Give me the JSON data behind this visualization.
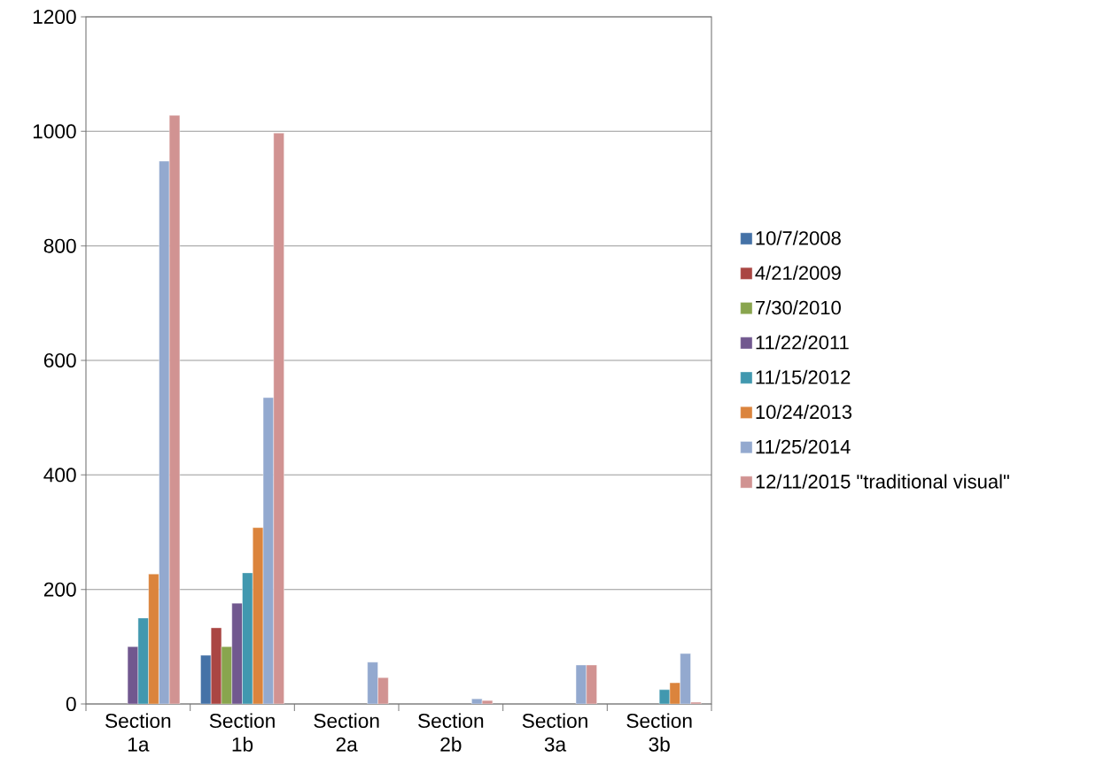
{
  "chart_data": {
    "type": "bar",
    "categories": [
      "Section 1a",
      "Section 1b",
      "Section 2a",
      "Section 2b",
      "Section 3a",
      "Section 3b"
    ],
    "series": [
      {
        "name": "10/7/2008",
        "color": "#4572a7",
        "values": [
          null,
          85,
          null,
          null,
          null,
          null
        ]
      },
      {
        "name": "4/21/2009",
        "color": "#aa4643",
        "values": [
          null,
          133,
          null,
          null,
          null,
          null
        ]
      },
      {
        "name": "7/30/2010",
        "color": "#89a54e",
        "values": [
          null,
          100,
          null,
          null,
          null,
          null
        ]
      },
      {
        "name": "11/22/2011",
        "color": "#71588f",
        "values": [
          100,
          176,
          null,
          null,
          null,
          null
        ]
      },
      {
        "name": "11/15/2012",
        "color": "#4198af",
        "values": [
          150,
          229,
          null,
          null,
          null,
          25
        ]
      },
      {
        "name": "10/24/2013",
        "color": "#db843d",
        "values": [
          227,
          308,
          null,
          null,
          null,
          37
        ]
      },
      {
        "name": "11/25/2014",
        "color": "#93a9cf",
        "values": [
          948,
          535,
          73,
          9,
          68,
          88
        ]
      },
      {
        "name": "12/11/2015 \"traditional visual\"",
        "color": "#d19392",
        "values": [
          1028,
          997,
          46,
          6,
          68,
          3
        ]
      }
    ],
    "ylim": [
      0,
      1200
    ],
    "yticks": [
      0,
      200,
      400,
      600,
      800,
      1000,
      1200
    ],
    "grid": "y",
    "legend": "right"
  }
}
